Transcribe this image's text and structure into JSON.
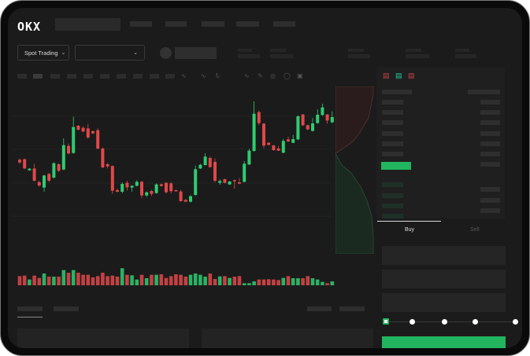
{
  "header": {
    "logo": "OKX"
  },
  "trading_bar": {
    "mode_label": "Spot Trading",
    "pair_dropdown": ""
  },
  "order_form": {
    "tabs": [
      {
        "label": "Buy",
        "active": true
      },
      {
        "label": "Sell",
        "active": false
      }
    ],
    "leverage_steps": 5,
    "selected_step": 0
  },
  "colors": {
    "up": "#2ecc71",
    "down": "#e0484a",
    "accent": "#22b45f",
    "background": "#1b1b1b"
  },
  "chart_data": {
    "type": "candlestick",
    "grid": true,
    "ohlc": [
      [
        70,
        71,
        67,
        68
      ],
      [
        70.4,
        71,
        62.8,
        63.4
      ],
      [
        62,
        63.6,
        61.6,
        63.2
      ],
      [
        63.4,
        67,
        53.4,
        54
      ],
      [
        53,
        54,
        49.4,
        50.4
      ],
      [
        48.8,
        58.6,
        45.6,
        58
      ],
      [
        59.2,
        60,
        53,
        54
      ],
      [
        56.4,
        68,
        55.6,
        67.4
      ],
      [
        66.6,
        67.2,
        60.6,
        61.6
      ],
      [
        62.6,
        86.4,
        62,
        81.2
      ],
      [
        80.6,
        82.4,
        74.2,
        74.8
      ],
      [
        75.2,
        103,
        74.6,
        95
      ],
      [
        96,
        96.6,
        92.4,
        93
      ],
      [
        94.4,
        95.6,
        91,
        91.6
      ],
      [
        94,
        97.4,
        86,
        87
      ],
      [
        91.8,
        92.4,
        89.6,
        90.2
      ],
      [
        92.6,
        94,
        78,
        78.6
      ],
      [
        78.6,
        79.4,
        63.6,
        64.2
      ],
      [
        66.6,
        67.4,
        63.4,
        65
      ],
      [
        65.2,
        65.8,
        44,
        46.4
      ],
      [
        46.8,
        48,
        45,
        45.6
      ],
      [
        45.6,
        52.8,
        44.4,
        51.6
      ],
      [
        52.4,
        54,
        46.4,
        49
      ],
      [
        48.8,
        50.6,
        45.6,
        50.2
      ],
      [
        50.2,
        54.4,
        49.6,
        53.2
      ],
      [
        53.2,
        54,
        40.6,
        42.8
      ],
      [
        42.8,
        45.8,
        41.6,
        45.2
      ],
      [
        46.2,
        47,
        42.4,
        44
      ],
      [
        44.6,
        52,
        44,
        51.2
      ],
      [
        51.4,
        51.8,
        49.6,
        50
      ],
      [
        52.4,
        53,
        44.2,
        45.2
      ],
      [
        52,
        53,
        44.4,
        46
      ],
      [
        46.8,
        47.2,
        45.8,
        46.2
      ],
      [
        45.8,
        47,
        38,
        38.4
      ],
      [
        39.4,
        40,
        37.6,
        38
      ],
      [
        38,
        43,
        37.4,
        42.2
      ],
      [
        43.2,
        65.6,
        42.4,
        62.8
      ],
      [
        63.4,
        66.8,
        63,
        66.2
      ],
      [
        66,
        75,
        65.6,
        72.4
      ],
      [
        71.4,
        72.4,
        64,
        64.4
      ],
      [
        68.4,
        71,
        52.8,
        54
      ],
      [
        52.4,
        55,
        51,
        53.8
      ],
      [
        55.2,
        55.6,
        52,
        52.4
      ],
      [
        51.2,
        53.8,
        50.8,
        53.4
      ],
      [
        54.4,
        55,
        48,
        53.6
      ],
      [
        52.8,
        56,
        51.4,
        51.8
      ],
      [
        53.2,
        69,
        52.6,
        67
      ],
      [
        66.4,
        78.4,
        66,
        77
      ],
      [
        76.8,
        114.6,
        76.2,
        105.2
      ],
      [
        106.4,
        107.6,
        96.4,
        98
      ],
      [
        97.6,
        98,
        78.8,
        80.8
      ],
      [
        83,
        83.6,
        80.8,
        81.4
      ],
      [
        81,
        81.4,
        76.8,
        77.4
      ],
      [
        78.6,
        80.6,
        76.8,
        77
      ],
      [
        75.4,
        86,
        75,
        84.4
      ],
      [
        85.6,
        87.6,
        83.6,
        84
      ],
      [
        83,
        89,
        82.6,
        85.8
      ],
      [
        85.6,
        104,
        85,
        103.2
      ],
      [
        104.6,
        105,
        95.6,
        96.4
      ],
      [
        96.4,
        96.8,
        92.8,
        93.2
      ],
      [
        92,
        102,
        91.6,
        97.8
      ],
      [
        98,
        108.6,
        97.6,
        104.4
      ],
      [
        104.2,
        112.8,
        103.6,
        110
      ],
      [
        104.6,
        105,
        97.6,
        100
      ],
      [
        98.6,
        107,
        98,
        102.6
      ]
    ],
    "volume": [
      35,
      37,
      22,
      37,
      28,
      45,
      33,
      33,
      33,
      58,
      48,
      58,
      48,
      40,
      40,
      30,
      35,
      48,
      35,
      37,
      33,
      65,
      40,
      38,
      22,
      40,
      27,
      40,
      40,
      42,
      28,
      35,
      42,
      40,
      33,
      40,
      45,
      40,
      33,
      45,
      24,
      34,
      35,
      28,
      33,
      35,
      8,
      8,
      15,
      22,
      22,
      23,
      22,
      20,
      28,
      35,
      27,
      27,
      27,
      35,
      27,
      22,
      13,
      8,
      15
    ]
  }
}
